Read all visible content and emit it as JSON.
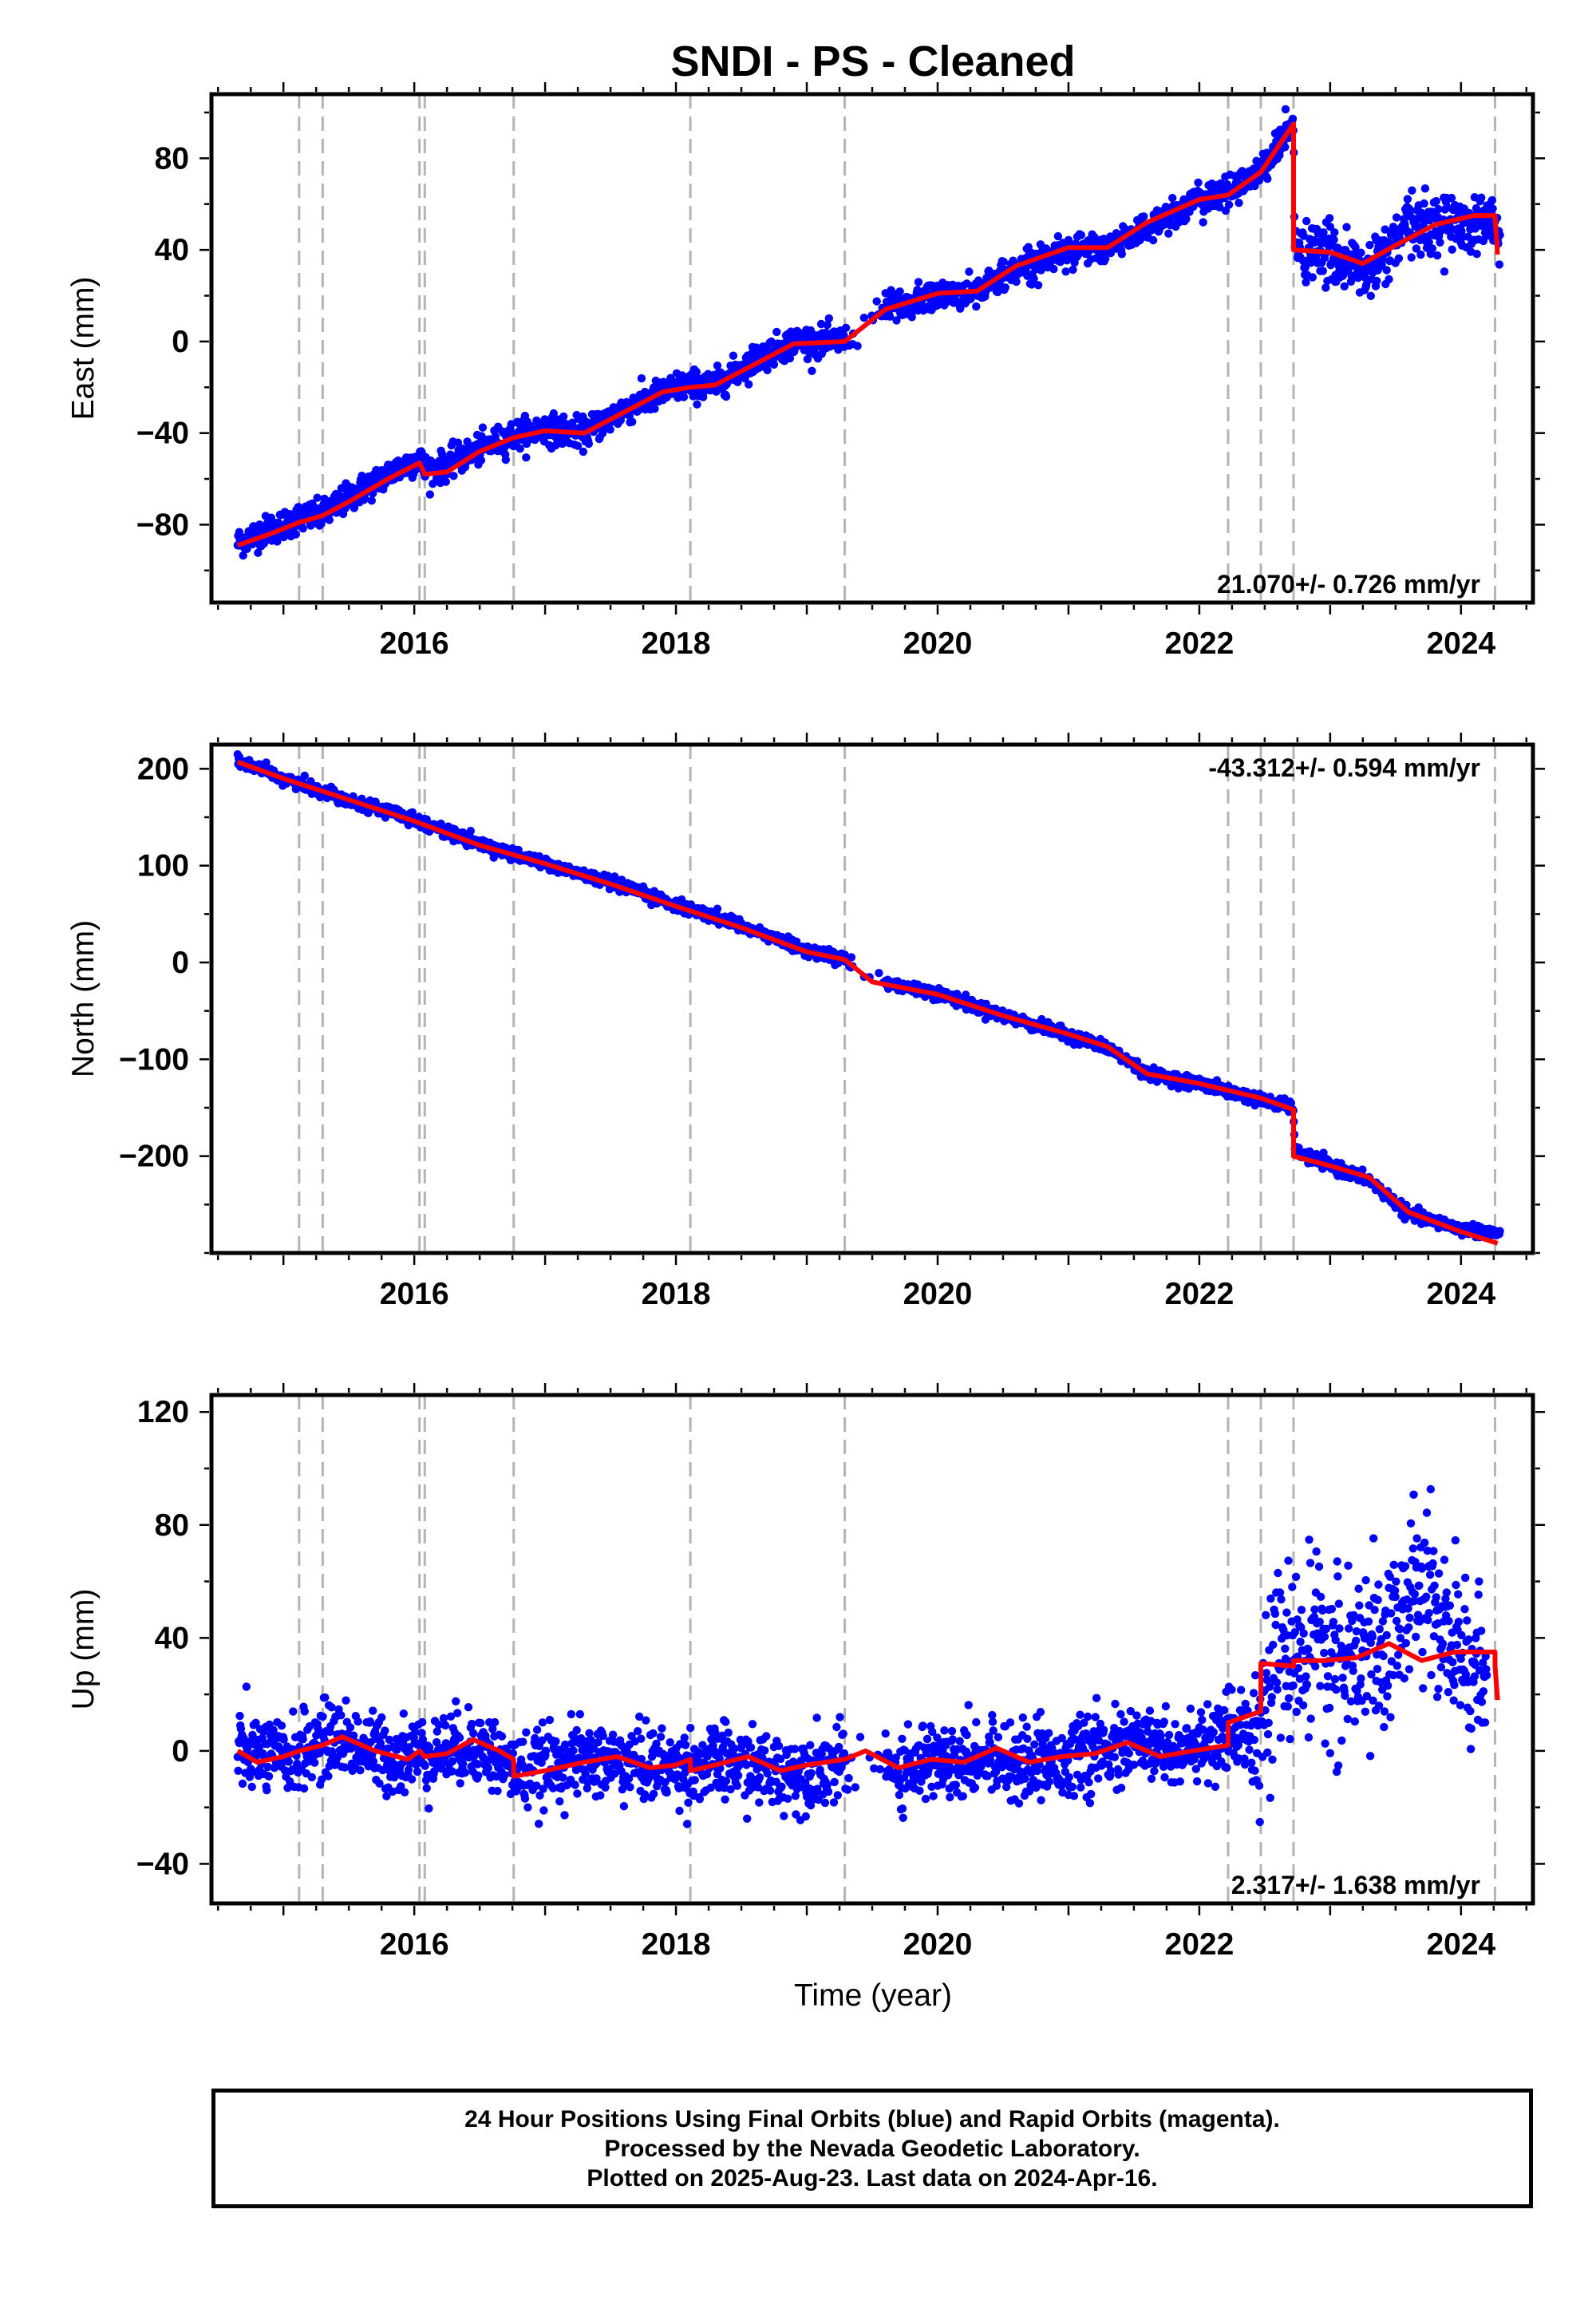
{
  "title": "SNDI  - PS - Cleaned",
  "xlabel": "Time (year)",
  "xticks": [
    "2016",
    "2018",
    "2020",
    "2022",
    "2024"
  ],
  "colors": {
    "points": "#0000ff",
    "model": "#ff0000",
    "events": "#b4b4b4",
    "frame": "#000000"
  },
  "footer": {
    "line1": "24 Hour Positions Using Final Orbits (blue) and Rapid Orbits (magenta).",
    "line2": "Processed by the Nevada Geodetic Laboratory.",
    "line3": "Plotted on 2025-Aug-23. Last data on 2024-Apr-16."
  },
  "chart_data": [
    {
      "type": "scatter",
      "panel": "east",
      "ylabel": "East (mm)",
      "ylim": [
        -114,
        108
      ],
      "xlim": [
        2014.45,
        2024.55
      ],
      "yticks": [
        "80",
        "40",
        "0",
        "−40",
        "−80"
      ],
      "ytick_values": [
        80,
        40,
        0,
        -40,
        -80
      ],
      "velocity_label": "21.070+/- 0.726 mm/yr",
      "velocity_position": "bottom-right",
      "event_lines": [
        2015.12,
        2015.3,
        2016.04,
        2016.08,
        2016.76,
        2018.11,
        2019.29,
        2022.22,
        2022.47,
        2022.72,
        2024.26
      ],
      "series": [
        {
          "name": "Final Orbits (blue)",
          "role": "points",
          "x": [
            2014.65,
            2014.8,
            2015.0,
            2015.12,
            2015.3,
            2015.5,
            2015.8,
            2016.04,
            2016.08,
            2016.2,
            2016.5,
            2016.76,
            2017.0,
            2017.3,
            2017.6,
            2018.0,
            2018.11,
            2018.3,
            2018.6,
            2018.9,
            2019.29,
            2019.6,
            2020.0,
            2020.3,
            2020.6,
            2021.0,
            2021.3,
            2021.6,
            2022.0,
            2022.22,
            2022.47,
            2022.72,
            2022.73,
            2023.0,
            2023.3,
            2023.6,
            2023.9,
            2024.26,
            2024.3
          ],
          "y": [
            -88,
            -84,
            -80,
            -77,
            -76,
            -68,
            -58,
            -51,
            -56,
            -55,
            -47,
            -41,
            -38,
            -40,
            -30,
            -20,
            -19,
            -19,
            -8,
            0,
            0,
            14,
            20,
            22,
            32,
            40,
            41,
            50,
            62,
            65,
            75,
            95,
            40,
            38,
            30,
            50,
            52,
            52,
            40
          ]
        },
        {
          "name": "Model",
          "role": "model",
          "x": [
            2014.65,
            2014.9,
            2015.12,
            2015.3,
            2015.5,
            2015.8,
            2016.04,
            2016.08,
            2016.25,
            2016.5,
            2016.76,
            2017.0,
            2017.3,
            2017.6,
            2017.9,
            2018.11,
            2018.3,
            2018.6,
            2018.9,
            2019.29,
            2019.6,
            2020.0,
            2020.3,
            2020.6,
            2021.0,
            2021.3,
            2021.6,
            2022.0,
            2022.22,
            2022.47,
            2022.72,
            2022.72,
            2023.0,
            2023.25,
            2023.5,
            2023.8,
            2024.1,
            2024.26,
            2024.26,
            2024.28
          ],
          "y": [
            -89,
            -84,
            -79,
            -76,
            -70,
            -60,
            -53,
            -58,
            -57,
            -48,
            -42,
            -39,
            -40,
            -31,
            -22,
            -20,
            -19,
            -10,
            -1,
            0,
            14,
            21,
            22,
            33,
            41,
            41,
            52,
            62,
            64,
            74,
            95,
            40,
            39,
            34,
            42,
            51,
            55,
            55,
            54,
            38
          ]
        }
      ]
    },
    {
      "type": "scatter",
      "panel": "north",
      "ylabel": "North (mm)",
      "ylim": [
        -300,
        225
      ],
      "xlim": [
        2014.45,
        2024.55
      ],
      "yticks": [
        "200",
        "100",
        "0",
        "−100",
        "−200"
      ],
      "ytick_values": [
        200,
        100,
        0,
        -100,
        -200
      ],
      "velocity_label": "-43.312+/- 0.594 mm/yr",
      "velocity_position": "top-right",
      "event_lines": [
        2015.12,
        2015.3,
        2016.04,
        2016.08,
        2016.76,
        2018.11,
        2019.29,
        2022.22,
        2022.47,
        2022.72,
        2024.26
      ],
      "series": [
        {
          "name": "Final Orbits (blue)",
          "role": "points",
          "x": [
            2014.65,
            2015.0,
            2015.5,
            2016.0,
            2016.5,
            2017.0,
            2017.5,
            2018.0,
            2018.5,
            2019.0,
            2019.29,
            2019.5,
            2020.0,
            2020.5,
            2021.0,
            2021.3,
            2021.6,
            2022.0,
            2022.47,
            2022.72,
            2022.73,
            2023.0,
            2023.3,
            2023.6,
            2024.0,
            2024.3
          ],
          "y": [
            208,
            190,
            168,
            148,
            122,
            102,
            82,
            60,
            38,
            12,
            3,
            -18,
            -32,
            -55,
            -75,
            -88,
            -115,
            -125,
            -142,
            -150,
            -195,
            -210,
            -225,
            -260,
            -275,
            -280
          ]
        },
        {
          "name": "Model",
          "role": "model",
          "x": [
            2014.65,
            2015.0,
            2015.5,
            2016.0,
            2016.5,
            2017.0,
            2017.5,
            2018.0,
            2018.5,
            2019.0,
            2019.29,
            2019.5,
            2020.0,
            2020.5,
            2021.0,
            2021.3,
            2021.6,
            2022.0,
            2022.47,
            2022.72,
            2022.72,
            2023.0,
            2023.3,
            2023.6,
            2024.0,
            2024.28
          ],
          "y": [
            207,
            190,
            168,
            146,
            121,
            102,
            81,
            58,
            36,
            11,
            3,
            -20,
            -33,
            -55,
            -74,
            -87,
            -115,
            -125,
            -140,
            -152,
            -200,
            -210,
            -222,
            -258,
            -278,
            -290
          ]
        }
      ]
    },
    {
      "type": "scatter",
      "panel": "up",
      "ylabel": "Up (mm)",
      "ylim": [
        -54,
        126
      ],
      "xlim": [
        2014.45,
        2024.55
      ],
      "yticks": [
        "120",
        "80",
        "40",
        "0",
        "−40"
      ],
      "ytick_values": [
        120,
        80,
        40,
        0,
        -40
      ],
      "velocity_label": "2.317+/- 1.638 mm/yr",
      "velocity_position": "bottom-right",
      "event_lines": [
        2015.12,
        2015.3,
        2016.04,
        2016.08,
        2016.76,
        2018.11,
        2019.29,
        2022.22,
        2022.47,
        2022.72,
        2024.26
      ],
      "series": [
        {
          "name": "Final Orbits (blue)",
          "role": "points",
          "x": [
            2014.65,
            2015.0,
            2015.4,
            2015.8,
            2016.2,
            2016.5,
            2016.8,
            2017.2,
            2017.6,
            2018.0,
            2018.4,
            2018.8,
            2019.2,
            2019.7,
            2020.0,
            2020.4,
            2020.8,
            2021.2,
            2021.6,
            2022.0,
            2022.4,
            2022.6,
            2022.9,
            2023.2,
            2023.5,
            2023.7,
            2023.9,
            2024.2
          ],
          "y": [
            0,
            -3,
            5,
            -2,
            0,
            2,
            -8,
            -3,
            -4,
            -6,
            -4,
            -8,
            -5,
            -6,
            -3,
            -2,
            -4,
            -1,
            2,
            0,
            8,
            32,
            35,
            28,
            45,
            60,
            40,
            25
          ]
        },
        {
          "name": "Model",
          "role": "model",
          "x": [
            2014.65,
            2014.8,
            2015.0,
            2015.12,
            2015.3,
            2015.45,
            2015.7,
            2015.95,
            2016.04,
            2016.08,
            2016.25,
            2016.45,
            2016.65,
            2016.76,
            2016.76,
            2017.0,
            2017.3,
            2017.55,
            2017.8,
            2018.0,
            2018.11,
            2018.11,
            2018.3,
            2018.55,
            2018.8,
            2019.0,
            2019.29,
            2019.45,
            2019.7,
            2019.95,
            2020.2,
            2020.45,
            2020.7,
            2020.95,
            2021.2,
            2021.45,
            2021.7,
            2021.95,
            2022.22,
            2022.22,
            2022.47,
            2022.47,
            2022.72,
            2022.72,
            2022.95,
            2023.2,
            2023.45,
            2023.7,
            2023.95,
            2024.26,
            2024.26,
            2024.28
          ],
          "y": [
            0,
            -4,
            -2,
            0,
            2,
            5,
            0,
            -3,
            0,
            -2,
            -1,
            4,
            0,
            -3,
            -9,
            -7,
            -4,
            -2,
            -6,
            -5,
            -3,
            -7,
            -5,
            -2,
            -7,
            -5,
            -3,
            0,
            -6,
            -3,
            -4,
            1,
            -4,
            -2,
            -1,
            3,
            -2,
            0,
            2,
            10,
            14,
            31,
            30,
            32,
            32,
            33,
            38,
            32,
            35,
            35,
            30,
            18
          ]
        }
      ]
    }
  ]
}
